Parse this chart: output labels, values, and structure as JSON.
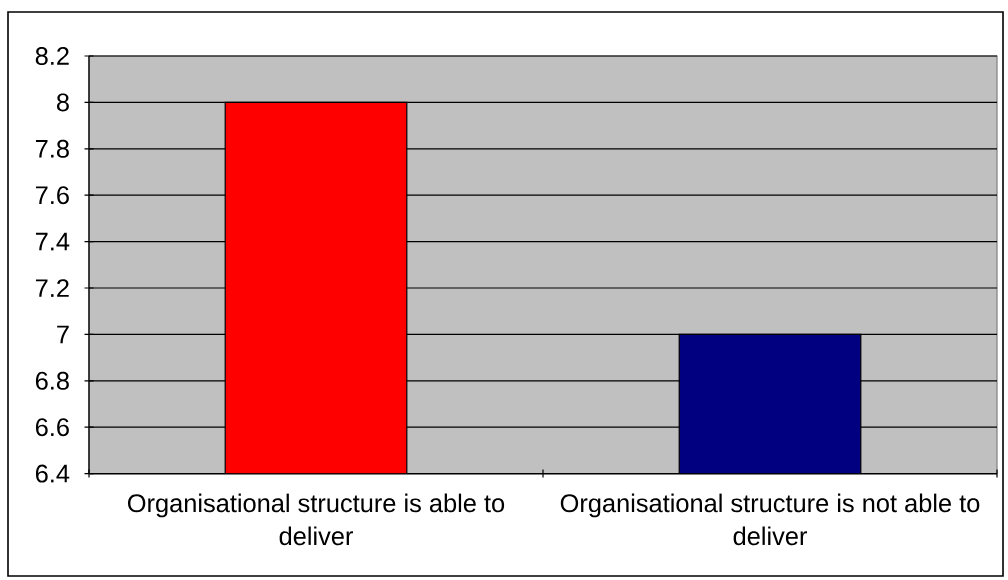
{
  "chart_data": {
    "type": "bar",
    "categories": [
      "Organisational structure is able to deliver",
      "Organisational structure is not able to deliver"
    ],
    "values": [
      8,
      7
    ],
    "colors": [
      "#ff0000",
      "#000080"
    ],
    "ylim": [
      6.4,
      8.2
    ],
    "yticks": [
      6.4,
      6.6,
      6.8,
      7,
      7.2,
      7.4,
      7.6,
      7.8,
      8,
      8.2
    ],
    "grid": "y"
  }
}
